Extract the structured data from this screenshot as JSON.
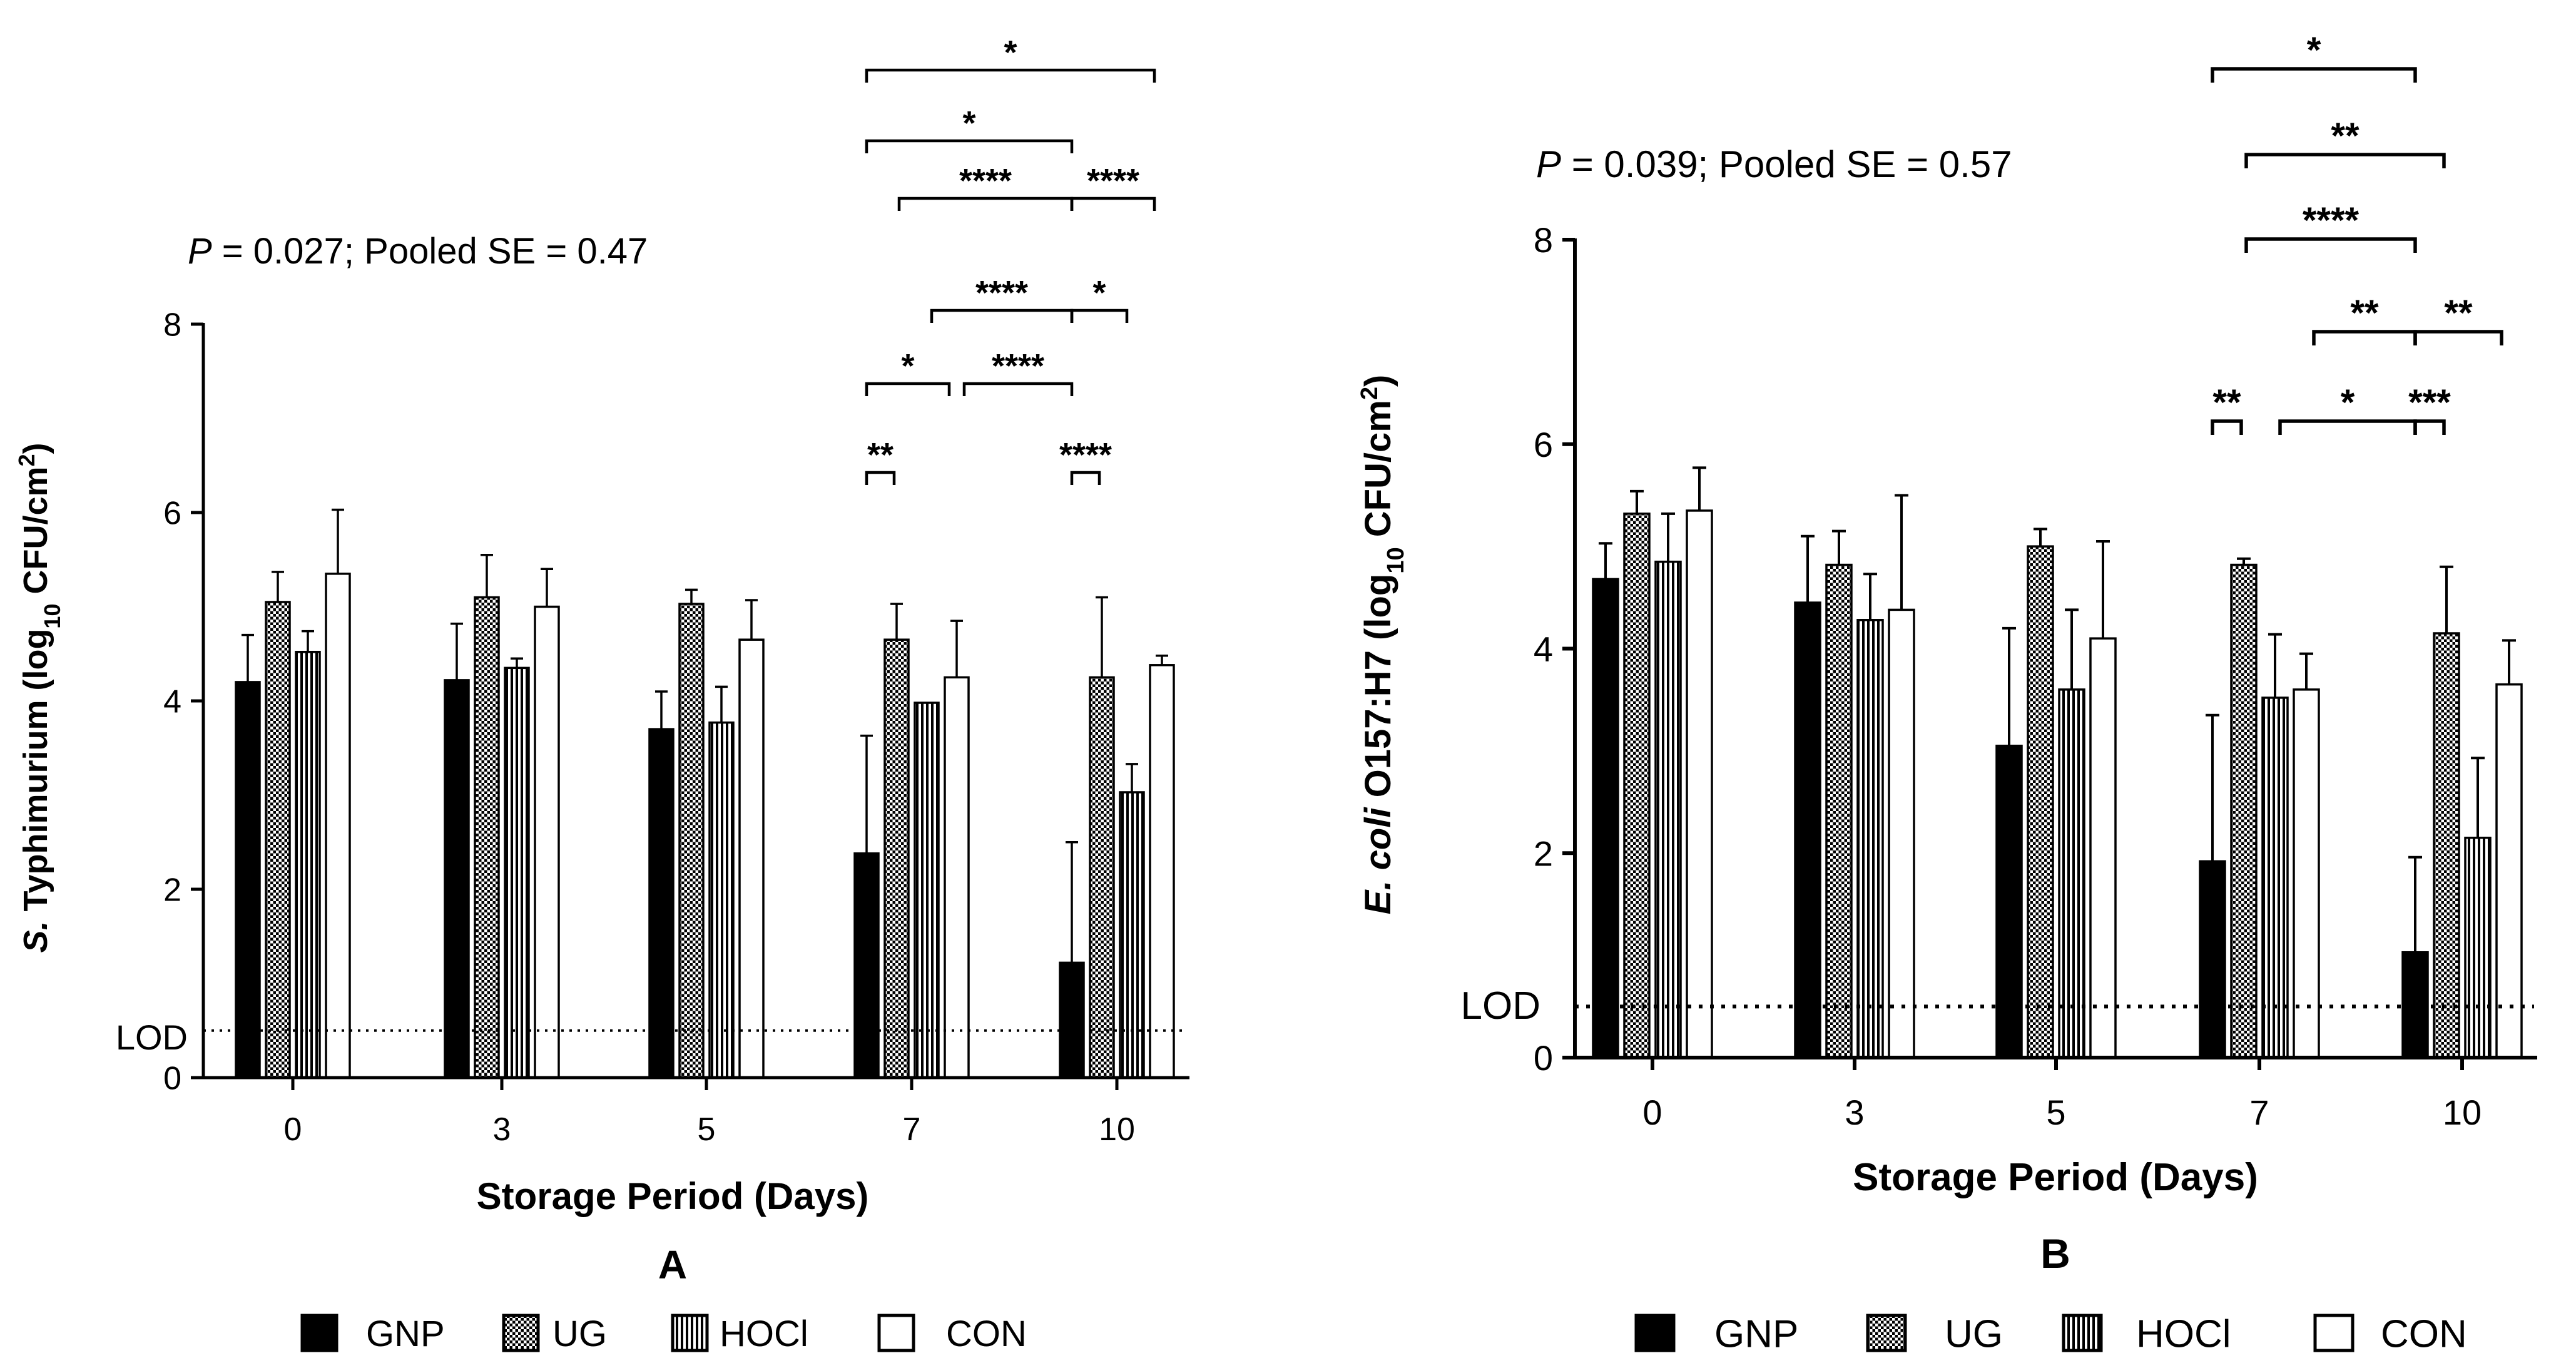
{
  "chart_data": [
    {
      "type": "bar",
      "panel_label": "A",
      "stats_p_label": "P",
      "stats_text": " = 0.027; Pooled SE = 0.47",
      "ylabel_italic": "S.",
      "ylabel_rest": " Typhimurium (log",
      "ylabel_sub": "10",
      "ylabel_unit": " CFU/cm",
      "ylabel_sup": "2",
      "ylabel_close": ")",
      "xlabel": "Storage Period (Days)",
      "categories": [
        "0",
        "3",
        "5",
        "7",
        "10"
      ],
      "ylim": [
        0,
        8
      ],
      "yticks": [
        0,
        2,
        4,
        6,
        8
      ],
      "lod": {
        "label": "LOD",
        "value": 0.5
      },
      "series": [
        {
          "name": "GNP",
          "values": [
            4.2,
            4.22,
            3.7,
            2.38,
            1.22
          ],
          "errors": [
            0.5,
            0.6,
            0.4,
            1.25,
            1.28
          ]
        },
        {
          "name": "UG",
          "values": [
            5.05,
            5.1,
            5.03,
            4.65,
            4.25
          ],
          "errors": [
            0.32,
            0.45,
            0.15,
            0.38,
            0.85
          ]
        },
        {
          "name": "HOCl",
          "values": [
            4.52,
            4.35,
            3.77,
            3.98,
            3.03
          ],
          "errors": [
            0.22,
            0.1,
            0.38,
            0.0,
            0.3
          ]
        },
        {
          "name": "CON",
          "values": [
            5.35,
            5.0,
            4.65,
            4.25,
            4.38
          ],
          "errors": [
            0.68,
            0.4,
            0.42,
            0.6,
            0.1
          ]
        }
      ],
      "significance": [
        {
          "from": "7-GNP",
          "to": "10-CON",
          "label": "*"
        },
        {
          "from": "7-GNP",
          "to": "10-GNP",
          "label": "*"
        },
        {
          "from": "7-UG",
          "to": "10-GNP",
          "label": "****"
        },
        {
          "from": "10-GNP",
          "to": "10-CON",
          "label": "****"
        },
        {
          "from": "7-HOCl",
          "to": "10-GNP",
          "label": "****"
        },
        {
          "from": "10-GNP",
          "to": "10-HOCl",
          "label": "*"
        },
        {
          "from": "7-GNP",
          "to": "7-CON",
          "label": "*"
        },
        {
          "from": "7-CON",
          "to": "10-GNP",
          "label": "****"
        },
        {
          "from": "7-GNP",
          "to": "7-UG",
          "label": "**"
        },
        {
          "from": "10-GNP",
          "to": "10-UG",
          "label": "****"
        }
      ]
    },
    {
      "type": "bar",
      "panel_label": "B",
      "stats_p_label": "P",
      "stats_text": " = 0.039; Pooled SE = 0.57",
      "ylabel_italic": "E. coli",
      "ylabel_rest": " O157:H7 (log",
      "ylabel_sub": "10",
      "ylabel_unit": " CFU/cm",
      "ylabel_sup": "2",
      "ylabel_close": ")",
      "xlabel": "Storage Period (Days)",
      "categories": [
        "0",
        "3",
        "5",
        "7",
        "10"
      ],
      "ylim": [
        0,
        8
      ],
      "yticks": [
        0,
        2,
        4,
        6,
        8
      ],
      "lod": {
        "label": "LOD",
        "value": 0.5
      },
      "series": [
        {
          "name": "GNP",
          "values": [
            4.68,
            4.45,
            3.05,
            1.92,
            1.03
          ],
          "errors": [
            0.35,
            0.65,
            1.15,
            1.43,
            0.93
          ]
        },
        {
          "name": "UG",
          "values": [
            5.32,
            4.82,
            5.0,
            4.82,
            4.15
          ],
          "errors": [
            0.22,
            0.33,
            0.17,
            0.06,
            0.65
          ]
        },
        {
          "name": "HOCl",
          "values": [
            4.85,
            4.28,
            3.6,
            3.52,
            2.15
          ],
          "errors": [
            0.47,
            0.45,
            0.78,
            0.62,
            0.78
          ]
        },
        {
          "name": "CON",
          "values": [
            5.35,
            4.38,
            4.1,
            3.6,
            3.65
          ],
          "errors": [
            0.42,
            1.12,
            0.95,
            0.35,
            0.43
          ]
        }
      ],
      "significance": [
        {
          "from": "7-GNP",
          "to": "10-GNP",
          "label": "*"
        },
        {
          "from": "7-UG",
          "to": "10-UG",
          "label": "**"
        },
        {
          "from": "7-UG",
          "to": "10-GNP",
          "label": "****"
        },
        {
          "from": "7-CON",
          "to": "10-GNP",
          "label": "**"
        },
        {
          "from": "10-GNP",
          "to": "10-CON",
          "label": "**"
        },
        {
          "from": "7-GNP",
          "to": "7-UG",
          "label": "**"
        },
        {
          "from": "7-HOCl",
          "to": "10-GNP",
          "label": "*"
        },
        {
          "from": "10-GNP",
          "to": "10-UG",
          "label": "***"
        }
      ]
    }
  ],
  "colors": {
    "ink": "#000000",
    "background": "#ffffff"
  }
}
